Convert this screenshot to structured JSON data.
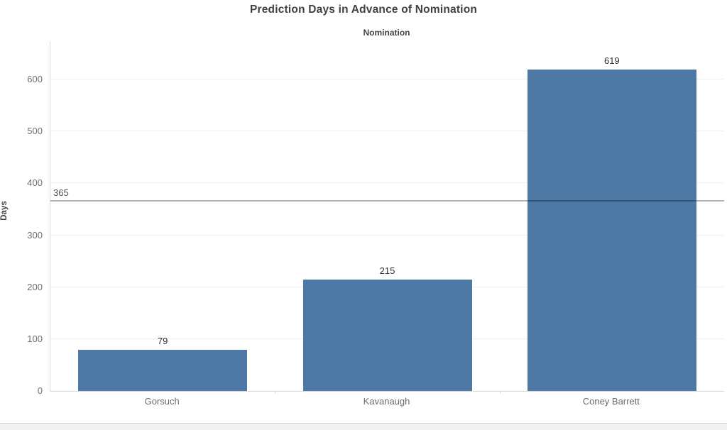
{
  "chart_data": {
    "type": "bar",
    "title": "Prediction Days in Advance of Nomination",
    "column_header": "Nomination",
    "xlabel": "",
    "ylabel": "Days",
    "categories": [
      "Gorsuch",
      "Kavanaugh",
      "Coney Barrett"
    ],
    "values": [
      79,
      215,
      619
    ],
    "bar_value_labels": [
      "79",
      "215",
      "619"
    ],
    "y_ticks": [
      0,
      100,
      200,
      300,
      400,
      500,
      600
    ],
    "ylim": [
      0,
      674
    ],
    "reference_line": {
      "value": 365,
      "label": "365"
    },
    "grid": true,
    "legend": "none",
    "colors": {
      "bar": "#4e79a7",
      "gridline": "#f0f0f0",
      "axis_line": "#d9d9d9",
      "reference_line": "rgba(0,0,0,0.30)"
    }
  }
}
